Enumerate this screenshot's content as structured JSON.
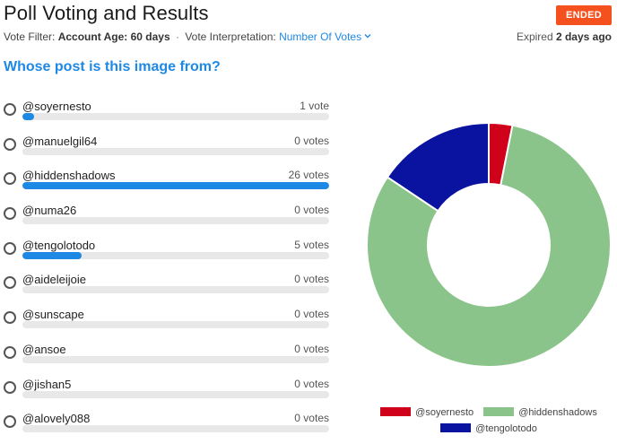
{
  "header": {
    "title": "Poll Voting and Results",
    "status": "ENDED",
    "vote_filter_label": "Vote Filter:",
    "vote_filter_value": "Account Age: 60 days",
    "separator": "·",
    "interpretation_label": "Vote Interpretation:",
    "interpretation_value": "Number Of Votes",
    "expired_label": "Expired",
    "expired_value": "2 days ago"
  },
  "poll": {
    "question": "Whose post is this image from?",
    "options": [
      {
        "label": "@soyernesto",
        "votes_text": "1 vote",
        "fraction": 0.0385
      },
      {
        "label": "@manuelgil64",
        "votes_text": "0 votes",
        "fraction": 0
      },
      {
        "label": "@hiddenshadows",
        "votes_text": "26 votes",
        "fraction": 1.0
      },
      {
        "label": "@numa26",
        "votes_text": "0 votes",
        "fraction": 0
      },
      {
        "label": "@tengolotodo",
        "votes_text": "5 votes",
        "fraction": 0.1923
      },
      {
        "label": "@aideleijoie",
        "votes_text": "0 votes",
        "fraction": 0
      },
      {
        "label": "@sunscape",
        "votes_text": "0 votes",
        "fraction": 0
      },
      {
        "label": "@ansoe",
        "votes_text": "0 votes",
        "fraction": 0
      },
      {
        "label": "@jishan5",
        "votes_text": "0 votes",
        "fraction": 0
      },
      {
        "label": "@alovely088",
        "votes_text": "0 votes",
        "fraction": 0
      }
    ]
  },
  "colors": {
    "accent": "#1e88e5",
    "badge": "#f4511e",
    "track": "#e8e8e8"
  },
  "chart_data": {
    "type": "pie",
    "donut": true,
    "categories": [
      "@soyernesto",
      "@hiddenshadows",
      "@tengolotodo"
    ],
    "values": [
      1,
      26,
      5
    ],
    "colors": [
      "#d0021b",
      "#8bc48a",
      "#0a12a0"
    ],
    "legend_position": "bottom"
  }
}
